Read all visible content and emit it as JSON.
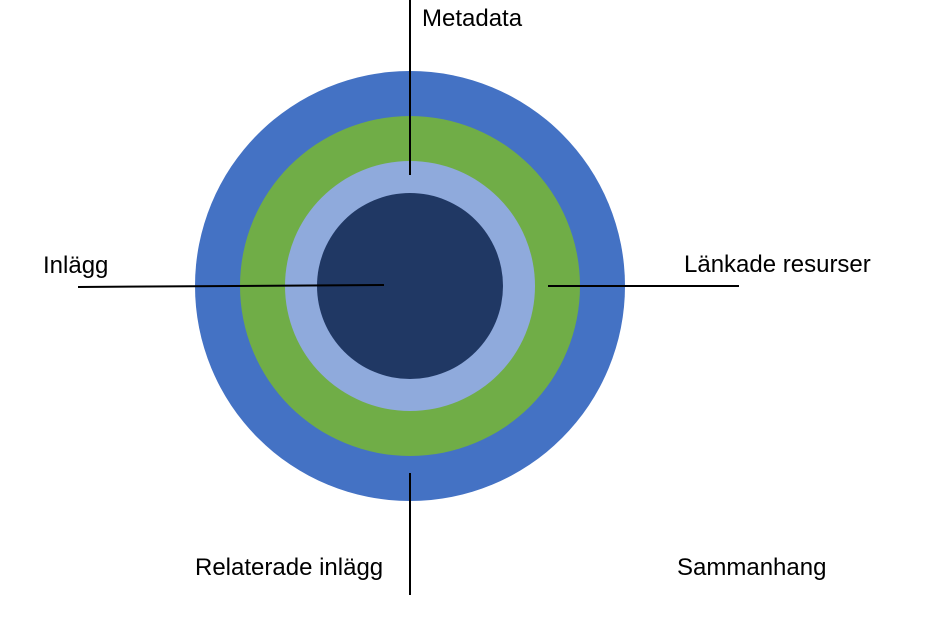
{
  "diagram": {
    "rings": [
      {
        "id": "outer",
        "color": "#4472C4"
      },
      {
        "id": "second",
        "color": "#70AD47"
      },
      {
        "id": "third",
        "color": "#8FAADC"
      },
      {
        "id": "core",
        "color": "#203864"
      }
    ],
    "labels": {
      "top": "Metadata",
      "left": "Inlägg",
      "right": "Länkade resurser",
      "bottom": "Relaterade inlägg",
      "bottom_right": "Sammanhang"
    }
  }
}
